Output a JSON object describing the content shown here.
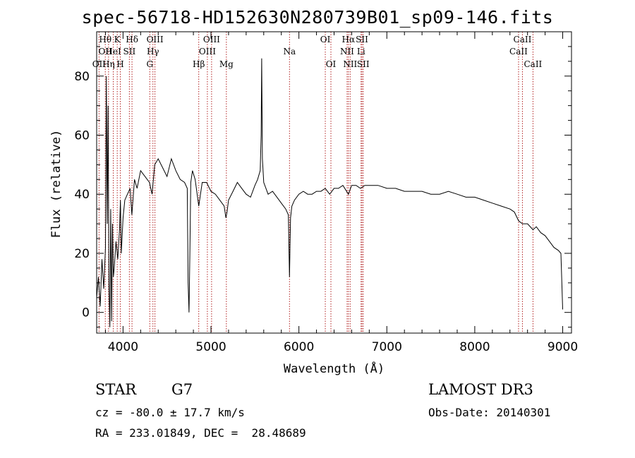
{
  "title": "spec-56718-HD152630N280739B01_sp09-146.fits",
  "info": {
    "class": "STAR",
    "subclass": "G7",
    "survey": "LAMOST DR3",
    "cz": "cz = -80.0 ± 17.7 km/s",
    "obs_date": "Obs-Date: 20140301",
    "coords": "RA = 233.01849, DEC =  28.48689"
  },
  "chart_data": {
    "type": "line",
    "title": "spec-56718-HD152630N280739B01_sp09-146.fits",
    "xlabel": "Wavelength (Å)",
    "ylabel": "Flux (relative)",
    "xlim": [
      3700,
      9100
    ],
    "ylim": [
      -7,
      95
    ],
    "xticks": [
      4000,
      5000,
      6000,
      7000,
      8000,
      9000
    ],
    "yticks": [
      0,
      20,
      40,
      60,
      80
    ],
    "series": [
      {
        "x": [
          3700,
          3720,
          3740,
          3760,
          3780,
          3800,
          3810,
          3820,
          3830,
          3840,
          3850,
          3860,
          3870,
          3880,
          3890,
          3900,
          3920,
          3940,
          3960,
          3970,
          3980,
          4000,
          4020,
          4050,
          4080,
          4100,
          4130,
          4160,
          4200,
          4250,
          4300,
          4330,
          4360,
          4400,
          4450,
          4500,
          4550,
          4600,
          4650,
          4700,
          4730,
          4740,
          4750,
          4760,
          4770,
          4790,
          4820,
          4861,
          4900,
          4950,
          5000,
          5050,
          5100,
          5150,
          5170,
          5183,
          5200,
          5250,
          5300,
          5350,
          5400,
          5450,
          5500,
          5530,
          5560,
          5570,
          5577,
          5585,
          5600,
          5650,
          5700,
          5750,
          5800,
          5850,
          5880,
          5893,
          5905,
          5920,
          5950,
          6000,
          6050,
          6100,
          6150,
          6200,
          6250,
          6300,
          6350,
          6400,
          6450,
          6500,
          6563,
          6600,
          6650,
          6700,
          6750,
          6800,
          6900,
          7000,
          7100,
          7200,
          7300,
          7400,
          7500,
          7600,
          7700,
          7800,
          7900,
          8000,
          8100,
          8200,
          8300,
          8400,
          8450,
          8498,
          8542,
          8600,
          8662,
          8700,
          8750,
          8800,
          8850,
          8900,
          8950,
          8980,
          9000
        ],
        "y": [
          5,
          12,
          2,
          18,
          8,
          22,
          80,
          30,
          70,
          10,
          -5,
          35,
          -3,
          30,
          12,
          15,
          24,
          18,
          28,
          38,
          20,
          32,
          38,
          40,
          42,
          33,
          45,
          42,
          48,
          46,
          44,
          40,
          50,
          52,
          49,
          46,
          52,
          48,
          45,
          44,
          42,
          10,
          0,
          20,
          44,
          48,
          45,
          36,
          44,
          44,
          41,
          40,
          38,
          36,
          32,
          34,
          38,
          41,
          44,
          42,
          40,
          39,
          43,
          45,
          48,
          60,
          86,
          52,
          44,
          40,
          41,
          39,
          37,
          35,
          33,
          12,
          32,
          36,
          38,
          40,
          41,
          40,
          40,
          41,
          41,
          42,
          40,
          42,
          42,
          43,
          40,
          43,
          43,
          42,
          43,
          43,
          43,
          42,
          42,
          41,
          41,
          41,
          40,
          40,
          41,
          40,
          39,
          39,
          38,
          37,
          36,
          35,
          34,
          31,
          30,
          30,
          28,
          29,
          27,
          26,
          24,
          22,
          21,
          20,
          1
        ]
      }
    ],
    "lines": [
      {
        "wave": 3727,
        "labels": [
          "OII"
        ],
        "rows": [
          2
        ]
      },
      {
        "wave": 3798,
        "labels": [
          "Hθ",
          "OII"
        ],
        "rows": [
          0,
          1
        ]
      },
      {
        "wave": 3835,
        "labels": [
          "Hη"
        ],
        "rows": [
          2
        ]
      },
      {
        "wave": 3889,
        "labels": [
          "HeI"
        ],
        "rows": [
          1
        ]
      },
      {
        "wave": 3934,
        "labels": [
          "K"
        ],
        "rows": [
          0
        ]
      },
      {
        "wave": 3969,
        "labels": [
          "H"
        ],
        "rows": [
          2
        ]
      },
      {
        "wave": 4072,
        "labels": [
          "SII"
        ],
        "rows": [
          1
        ]
      },
      {
        "wave": 4102,
        "labels": [
          "Hδ"
        ],
        "rows": [
          0
        ]
      },
      {
        "wave": 4304,
        "labels": [
          "G"
        ],
        "rows": [
          2
        ]
      },
      {
        "wave": 4340,
        "labels": [
          "Hγ"
        ],
        "rows": [
          1
        ]
      },
      {
        "wave": 4363,
        "labels": [
          "OIII"
        ],
        "rows": [
          0
        ]
      },
      {
        "wave": 4861,
        "labels": [
          "Hβ"
        ],
        "rows": [
          2
        ]
      },
      {
        "wave": 4959,
        "labels": [
          "OIII"
        ],
        "rows": [
          1
        ]
      },
      {
        "wave": 5007,
        "labels": [
          "OIII"
        ],
        "rows": [
          0
        ]
      },
      {
        "wave": 5175,
        "labels": [
          "Mg"
        ],
        "rows": [
          2
        ]
      },
      {
        "wave": 5893,
        "labels": [
          "Na"
        ],
        "rows": [
          1
        ]
      },
      {
        "wave": 6300,
        "labels": [
          "OI"
        ],
        "rows": [
          0
        ]
      },
      {
        "wave": 6364,
        "labels": [
          "OI"
        ],
        "rows": [
          2
        ]
      },
      {
        "wave": 6548,
        "labels": [
          "NII"
        ],
        "rows": [
          1
        ]
      },
      {
        "wave": 6563,
        "labels": [
          "Hα"
        ],
        "rows": [
          0
        ]
      },
      {
        "wave": 6583,
        "labels": [
          "NII"
        ],
        "rows": [
          2
        ]
      },
      {
        "wave": 6707,
        "labels": [
          "Li"
        ],
        "rows": [
          1
        ]
      },
      {
        "wave": 6717,
        "labels": [
          "SII"
        ],
        "rows": [
          0
        ]
      },
      {
        "wave": 6731,
        "labels": [
          "SII"
        ],
        "rows": [
          2
        ]
      },
      {
        "wave": 8498,
        "labels": [
          "CaII"
        ],
        "rows": [
          1
        ]
      },
      {
        "wave": 8542,
        "labels": [
          "CaII"
        ],
        "rows": [
          0
        ]
      },
      {
        "wave": 8662,
        "labels": [
          "CaII"
        ],
        "rows": [
          2
        ]
      }
    ],
    "line_color": "#b22222",
    "grid": false,
    "legend": "none"
  }
}
